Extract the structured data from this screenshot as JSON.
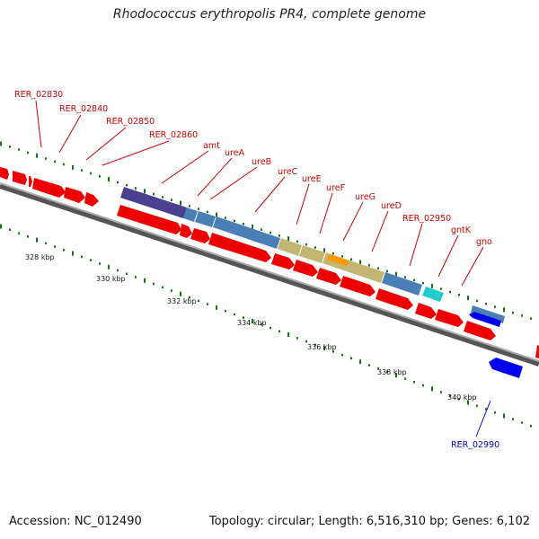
{
  "title": "Rhodococcus erythropolis PR4, complete genome",
  "footer": {
    "accession": "Accession: NC_012490",
    "summary": "Topology: circular; Length: 6,516,310 bp; Genes: 6,102"
  },
  "kbp_labels": [
    "328 kbp",
    "330 kbp",
    "332 kbp",
    "334 kbp",
    "336 kbp",
    "338 kbp",
    "340 kbp"
  ],
  "gene_labels": [
    {
      "text": "RER_02830",
      "color": "#cc0000"
    },
    {
      "text": "RER_02840",
      "color": "#cc0000"
    },
    {
      "text": "RER_02850",
      "color": "#cc0000"
    },
    {
      "text": "RER_02860",
      "color": "#cc0000"
    },
    {
      "text": "amt",
      "color": "#cc0000"
    },
    {
      "text": "ureA",
      "color": "#cc0000"
    },
    {
      "text": "ureB",
      "color": "#cc0000"
    },
    {
      "text": "ureC",
      "color": "#cc0000"
    },
    {
      "text": "ureE",
      "color": "#cc0000"
    },
    {
      "text": "ureF",
      "color": "#cc0000"
    },
    {
      "text": "ureG",
      "color": "#cc0000"
    },
    {
      "text": "ureD",
      "color": "#cc0000"
    },
    {
      "text": "RER_02950",
      "color": "#cc0000"
    },
    {
      "text": "gntK",
      "color": "#cc0000"
    },
    {
      "text": "gno",
      "color": "#cc0000"
    },
    {
      "text": "RER_02990",
      "color": "#0000cc"
    }
  ],
  "colors": {
    "forward_cds": "#ee0000",
    "reverse_cds": "#0000ee",
    "backbone": "#888888",
    "gc_tick": "#117711",
    "feature_purple": "#4b3f8f",
    "feature_blue": "#4a7fb5",
    "feature_tan": "#c2b672",
    "feature_orange": "#ff9900",
    "feature_cyan": "#22cccc"
  }
}
